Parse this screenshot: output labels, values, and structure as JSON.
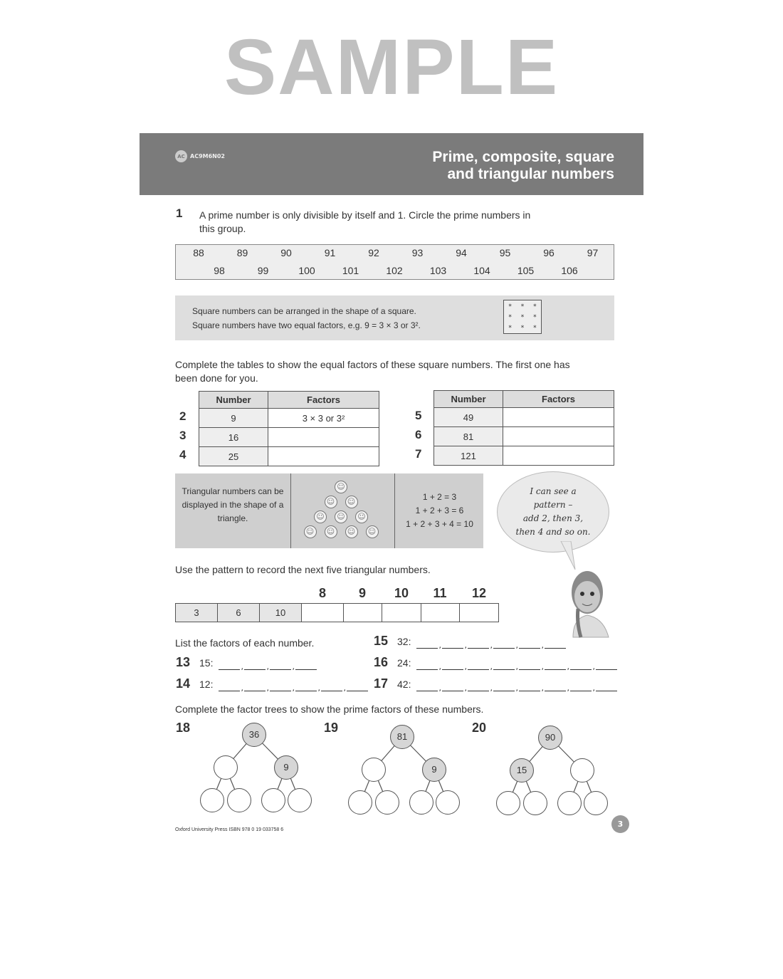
{
  "header": {
    "curriculum_code": "AC9M6N02",
    "logo_text": "AC",
    "title_line1": "Prime, composite, square",
    "title_line2": "and triangular numbers",
    "band_color": "#7b7b7b"
  },
  "q1": {
    "number": "1",
    "text_line1": "A prime number is only divisible by itself and 1. Circle the prime numbers in",
    "text_line2": "this group.",
    "row1": [
      "88",
      "89",
      "90",
      "91",
      "92",
      "93",
      "94",
      "95",
      "96",
      "97"
    ],
    "row2": [
      "98",
      "99",
      "100",
      "101",
      "102",
      "103",
      "104",
      "105",
      "106"
    ]
  },
  "square_info": {
    "line1": "Square numbers can be arranged in the shape of a square.",
    "line2": "Square numbers have two equal factors, e.g. 9 = 3 × 3 or 3²."
  },
  "tables": {
    "instruction_line1": "Complete the tables to show the equal factors of these square numbers. The first one has",
    "instruction_line2": "been done for you.",
    "headers": [
      "Number",
      "Factors"
    ],
    "left": [
      {
        "q": "2",
        "number": "9",
        "factors": "3 × 3 or 3²"
      },
      {
        "q": "3",
        "number": "16",
        "factors": ""
      },
      {
        "q": "4",
        "number": "25",
        "factors": ""
      }
    ],
    "right": [
      {
        "q": "5",
        "number": "49",
        "factors": ""
      },
      {
        "q": "6",
        "number": "81",
        "factors": ""
      },
      {
        "q": "7",
        "number": "121",
        "factors": ""
      }
    ]
  },
  "triangular_info": {
    "text": "Triangular numbers can be displayed in the shape of a triangle.",
    "sums": [
      "1 + 2 = 3",
      "1 + 2 + 3 = 6",
      "1 + 2 + 3 + 4 = 10"
    ],
    "speech": [
      "I can see a",
      "pattern –",
      "add 2, then 3,",
      "then 4 and so on."
    ]
  },
  "pattern": {
    "instruction": "Use the pattern to record the next five triangular numbers.",
    "question_numbers": [
      "8",
      "9",
      "10",
      "11",
      "12"
    ],
    "given": [
      "3",
      "6",
      "10"
    ],
    "answers": [
      "",
      "",
      "",
      "",
      ""
    ]
  },
  "factors": {
    "instruction": "List the factors of each number.",
    "items": [
      {
        "q": "13",
        "label": "15:",
        "answers": [
          "",
          "",
          "",
          ""
        ]
      },
      {
        "q": "14",
        "label": "12:",
        "answers": [
          "",
          "",
          "",
          "",
          "",
          ""
        ]
      },
      {
        "q": "15",
        "label": "32:",
        "answers": [
          "",
          "",
          "",
          "",
          "",
          ""
        ]
      },
      {
        "q": "16",
        "label": "24:",
        "answers": [
          "",
          "",
          "",
          "",
          "",
          "",
          "",
          ""
        ]
      },
      {
        "q": "17",
        "label": "42:",
        "answers": [
          "",
          "",
          "",
          "",
          "",
          "",
          "",
          ""
        ]
      }
    ]
  },
  "trees": {
    "instruction": "Complete the factor trees to show the prime factors of these numbers.",
    "items": [
      {
        "q": "18",
        "root": "36",
        "left": "",
        "right": "9",
        "filled": "right"
      },
      {
        "q": "19",
        "root": "81",
        "left": "",
        "right": "9",
        "filled": "right"
      },
      {
        "q": "20",
        "root": "90",
        "left": "15",
        "right": "",
        "filled": "left"
      }
    ]
  },
  "footer": {
    "publisher": "Oxford University Press ISBN 978 0 19 033758 6",
    "page_number": "3"
  },
  "watermark": "SAMPLE"
}
